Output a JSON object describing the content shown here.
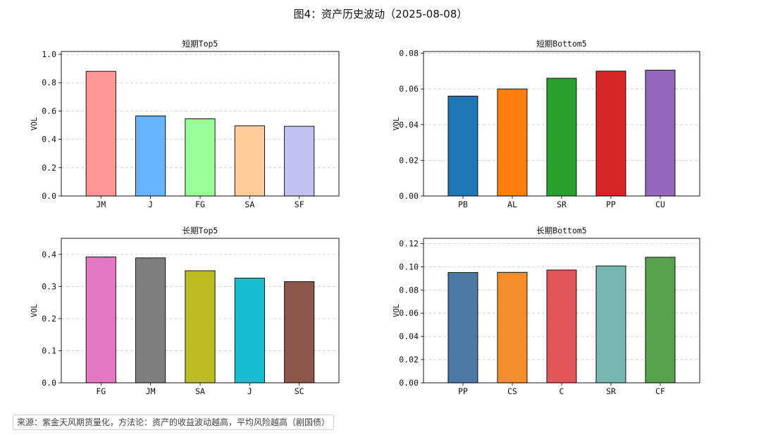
{
  "figure": {
    "title": "图4：资产历史波动（2025-08-08）",
    "source": "来源：紫金天风期货量化，方法论：资产的收益波动越高，平均风险越高（剧国债）"
  },
  "chart_data": [
    {
      "type": "bar",
      "title": "短期Top5",
      "ylabel": "VOL",
      "categories": [
        "JM",
        "J",
        "FG",
        "SA",
        "SF"
      ],
      "values": [
        0.88,
        0.565,
        0.545,
        0.495,
        0.492
      ],
      "colors": [
        "#ff9896",
        "#66b3ff",
        "#99ff99",
        "#ffcc99",
        "#c2c2f0"
      ],
      "ylim": [
        0,
        1.02
      ],
      "yticks": [
        0.0,
        0.2,
        0.4,
        0.6,
        0.8,
        1.0
      ],
      "tick_decimals": 1,
      "grid": "y-dashed"
    },
    {
      "type": "bar",
      "title": "短期Bottom5",
      "ylabel": "VOL",
      "categories": [
        "PB",
        "AL",
        "SR",
        "PP",
        "CU"
      ],
      "values": [
        0.056,
        0.06,
        0.066,
        0.07,
        0.0705
      ],
      "colors": [
        "#1f77b4",
        "#ff7f0e",
        "#2ca02c",
        "#d62728",
        "#9467bd"
      ],
      "ylim": [
        0,
        0.081
      ],
      "yticks": [
        0.0,
        0.02,
        0.04,
        0.06,
        0.08
      ],
      "tick_decimals": 2,
      "grid": "y-dashed"
    },
    {
      "type": "bar",
      "title": "长期Top5",
      "ylabel": "VOL",
      "categories": [
        "FG",
        "JM",
        "SA",
        "J",
        "SC"
      ],
      "values": [
        0.392,
        0.389,
        0.349,
        0.326,
        0.315
      ],
      "colors": [
        "#e377c2",
        "#7f7f7f",
        "#bcbd22",
        "#17becf",
        "#8c564b"
      ],
      "ylim": [
        0,
        0.45
      ],
      "yticks": [
        0.0,
        0.1,
        0.2,
        0.3,
        0.4
      ],
      "tick_decimals": 1,
      "grid": "y-dashed"
    },
    {
      "type": "bar",
      "title": "长期Bottom5",
      "ylabel": "VOL",
      "categories": [
        "PP",
        "CS",
        "C",
        "SR",
        "CF"
      ],
      "values": [
        0.095,
        0.0952,
        0.0972,
        0.1007,
        0.1082
      ],
      "colors": [
        "#4e79a7",
        "#f28e2b",
        "#e15759",
        "#76b7b2",
        "#59a14f"
      ],
      "ylim": [
        0,
        0.1245
      ],
      "yticks": [
        0.0,
        0.02,
        0.04,
        0.06,
        0.08,
        0.1,
        0.12
      ],
      "tick_decimals": 2,
      "grid": "y-dashed"
    }
  ]
}
